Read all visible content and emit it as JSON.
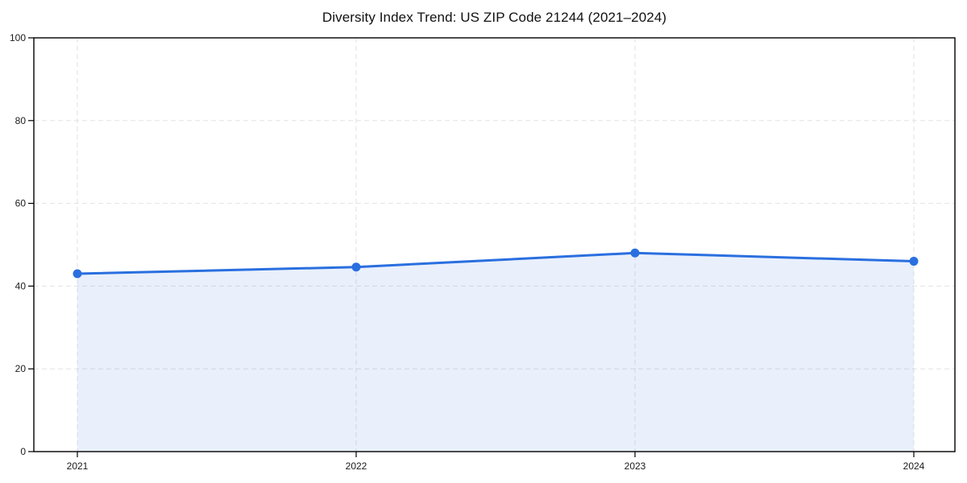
{
  "page": {
    "title": "Diversity Index Trend: US ZIP Code 21244 (2021–2024)"
  },
  "chart_data": {
    "type": "area",
    "title": "Diversity Index Trend: US ZIP Code 21244 (2021–2024)",
    "x": [
      2021,
      2022,
      2023,
      2024
    ],
    "xtick_labels": [
      "2021",
      "2022",
      "2023",
      "2024"
    ],
    "series": [
      {
        "name": "Diversity Index",
        "values": [
          43,
          44.6,
          48,
          46
        ]
      }
    ],
    "xlabel": "",
    "ylabel": "",
    "ylim": [
      0,
      100
    ],
    "yticks": [
      0,
      20,
      40,
      60,
      80,
      100
    ],
    "grid": true,
    "legend": "none",
    "colors": {
      "line": "#2a6fdf",
      "marker": "#2a6fdf",
      "fill": "#2a6fdf",
      "fill_opacity": 0.1,
      "gridline": "#e2e2e2",
      "frame": "#000000",
      "text": "#1a1a1a",
      "background": "#ffffff"
    }
  }
}
